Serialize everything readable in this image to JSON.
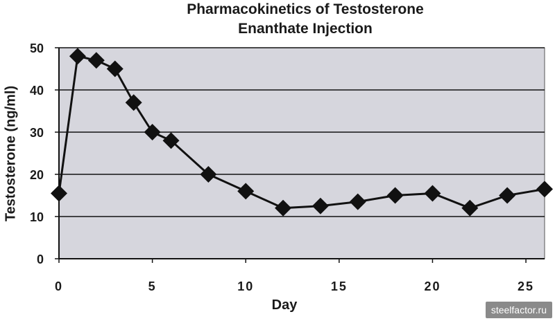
{
  "chart_data": {
    "type": "line",
    "title_lines": [
      "Pharmacokinetics of Testosterone",
      "Enanthate Injection"
    ],
    "xlabel": "Day",
    "ylabel": "Testosterone (ng/ml)",
    "xlim": [
      0,
      26
    ],
    "ylim": [
      0,
      50
    ],
    "xticks": [
      0,
      5,
      10,
      15,
      20,
      25
    ],
    "yticks": [
      0,
      10,
      20,
      30,
      40,
      50
    ],
    "grid": "horizontal",
    "marker": "diamond",
    "series": [
      {
        "x": [
          0,
          1,
          2,
          3,
          4,
          5,
          6,
          8,
          10,
          12,
          14,
          16,
          18,
          20,
          22,
          24,
          26
        ],
        "y": [
          15.5,
          48,
          47,
          45,
          37,
          30,
          28,
          20,
          16,
          12,
          12.5,
          13.5,
          15,
          15.5,
          12,
          15,
          16.5
        ]
      }
    ]
  },
  "colors": {
    "plot_bg": "#d6d6dd",
    "line": "#111111",
    "grid": "#111111"
  },
  "watermark": "steelfactor.ru"
}
